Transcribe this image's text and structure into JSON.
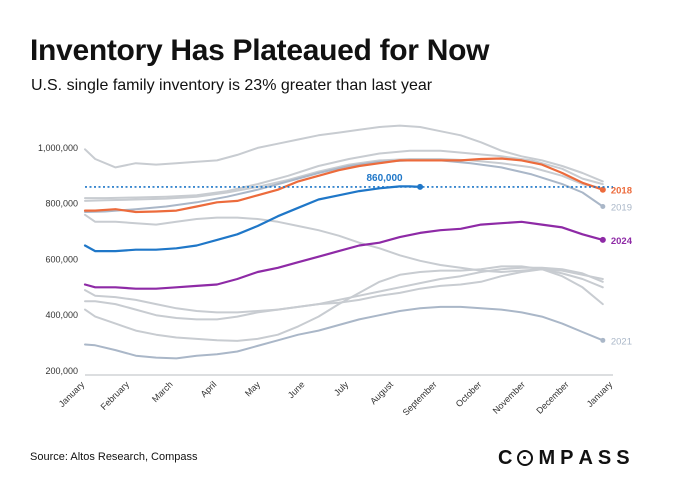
{
  "title": "Inventory Has Plateaued for Now",
  "subtitle": "U.S. single family inventory is 23% greater than last year",
  "source": "Source: Altos Research, Compass",
  "logo": {
    "text": "COMPASS",
    "letters": [
      "C",
      "O",
      "M",
      "P",
      "A",
      "S",
      "S"
    ]
  },
  "chart_data": {
    "type": "line",
    "ylim": [
      200000,
      1100000
    ],
    "y_ticks": [
      200000,
      400000,
      600000,
      800000,
      1000000
    ],
    "y_tick_labels": [
      "200,000",
      "400,000",
      "600,000",
      "800,000",
      "1,000,000"
    ],
    "x_ticks": [
      1,
      5.4,
      9.7,
      14,
      18.3,
      22.7,
      27,
      31.4,
      35.7,
      40.1,
      44.4,
      48.7,
      53
    ],
    "x_tick_labels": [
      "January",
      "February",
      "March",
      "April",
      "May",
      "June",
      "July",
      "August",
      "September",
      "October",
      "November",
      "December",
      "January"
    ],
    "grid": false,
    "reference_line": {
      "value": 860000,
      "label": "860,000",
      "color": "#1f77c8"
    },
    "series": [
      {
        "name": "",
        "color": "#c8ccd1",
        "x": [
          1,
          2,
          4,
          6,
          8,
          10,
          12,
          14,
          16,
          18,
          20,
          22,
          24,
          26,
          28,
          30,
          32,
          34,
          36,
          38,
          40,
          42,
          44,
          46,
          48,
          50,
          52
        ],
        "values": [
          995000,
          960000,
          930000,
          945000,
          940000,
          945000,
          950000,
          955000,
          975000,
          1000000,
          1015000,
          1030000,
          1045000,
          1055000,
          1065000,
          1075000,
          1080000,
          1075000,
          1060000,
          1045000,
          1020000,
          990000,
          970000,
          955000,
          935000,
          910000,
          880000
        ]
      },
      {
        "name": "",
        "color": "#c8ccd1",
        "x": [
          1,
          3,
          6,
          9,
          12,
          15,
          18,
          21,
          24,
          27,
          30,
          33,
          36,
          39,
          42,
          45,
          48,
          50,
          52
        ],
        "values": [
          820000,
          820000,
          822000,
          825000,
          830000,
          845000,
          870000,
          900000,
          935000,
          960000,
          980000,
          990000,
          990000,
          980000,
          970000,
          955000,
          925000,
          890000,
          870000
        ]
      },
      {
        "name": "",
        "color": "#c8ccd1",
        "x": [
          1,
          3,
          6,
          9,
          12,
          15,
          18,
          21,
          24,
          27,
          30,
          33,
          36,
          39,
          42,
          45,
          48,
          50,
          52
        ],
        "values": [
          810000,
          812000,
          815000,
          818000,
          825000,
          840000,
          860000,
          885000,
          915000,
          940000,
          955000,
          960000,
          960000,
          955000,
          945000,
          930000,
          900000,
          870000,
          855000
        ]
      },
      {
        "name": "2019",
        "color": "#aab7c8",
        "x": [
          1,
          3,
          6,
          9,
          12,
          15,
          18,
          21,
          24,
          27,
          30,
          33,
          36,
          39,
          42,
          45,
          48,
          50,
          52
        ],
        "values": [
          770000,
          772000,
          780000,
          790000,
          805000,
          825000,
          850000,
          880000,
          910000,
          935000,
          950000,
          955000,
          955000,
          945000,
          930000,
          905000,
          870000,
          840000,
          790000
        ]
      },
      {
        "name": "",
        "color": "#c8ccd1",
        "x": [
          1,
          2,
          4,
          6,
          8,
          10,
          12,
          14,
          16,
          18,
          20,
          22,
          24,
          26,
          28,
          30,
          32,
          34,
          36,
          38,
          40,
          42,
          44,
          46,
          48,
          50,
          52
        ],
        "values": [
          760000,
          735000,
          735000,
          730000,
          725000,
          735000,
          745000,
          750000,
          750000,
          745000,
          735000,
          720000,
          705000,
          685000,
          660000,
          640000,
          615000,
          595000,
          580000,
          570000,
          560000,
          555000,
          560000,
          565000,
          560000,
          545000,
          530000
        ]
      },
      {
        "name": "",
        "color": "#c8ccd1",
        "x": [
          1,
          2,
          4,
          6,
          8,
          10,
          12,
          14,
          16,
          18,
          20,
          22,
          24,
          26,
          28,
          30,
          32,
          34,
          36,
          38,
          40,
          42,
          44,
          46,
          48,
          50,
          52
        ],
        "values": [
          490000,
          470000,
          465000,
          455000,
          440000,
          425000,
          415000,
          410000,
          410000,
          415000,
          420000,
          430000,
          440000,
          455000,
          470000,
          485000,
          500000,
          515000,
          530000,
          540000,
          555000,
          565000,
          570000,
          570000,
          565000,
          550000,
          520000
        ]
      },
      {
        "name": "",
        "color": "#c8ccd1",
        "x": [
          1,
          2,
          4,
          6,
          8,
          10,
          12,
          14,
          16,
          18,
          20,
          22,
          24,
          26,
          28,
          30,
          32,
          34,
          36,
          38,
          40,
          42,
          44,
          46,
          48,
          50,
          52
        ],
        "values": [
          420000,
          395000,
          370000,
          345000,
          330000,
          320000,
          315000,
          310000,
          308000,
          315000,
          330000,
          360000,
          395000,
          440000,
          480000,
          520000,
          545000,
          555000,
          560000,
          560000,
          565000,
          575000,
          575000,
          565000,
          550000,
          530000,
          500000
        ]
      },
      {
        "name": "",
        "color": "#c8ccd1",
        "x": [
          1,
          2,
          4,
          6,
          8,
          10,
          12,
          14,
          16,
          18,
          20,
          22,
          24,
          26,
          28,
          30,
          32,
          34,
          36,
          38,
          40,
          42,
          44,
          46,
          48,
          50,
          52
        ],
        "values": [
          450000,
          450000,
          440000,
          420000,
          400000,
          390000,
          385000,
          385000,
          395000,
          410000,
          420000,
          430000,
          440000,
          445000,
          455000,
          470000,
          480000,
          495000,
          505000,
          510000,
          520000,
          540000,
          555000,
          565000,
          540000,
          500000,
          440000
        ]
      },
      {
        "name": "2021",
        "color": "#aab7c8",
        "x": [
          1,
          2,
          4,
          6,
          8,
          10,
          12,
          14,
          16,
          18,
          20,
          22,
          24,
          26,
          28,
          30,
          32,
          34,
          36,
          38,
          40,
          42,
          44,
          46,
          48,
          50,
          52
        ],
        "values": [
          295000,
          292000,
          275000,
          255000,
          248000,
          245000,
          255000,
          260000,
          270000,
          290000,
          310000,
          330000,
          345000,
          365000,
          385000,
          400000,
          415000,
          425000,
          430000,
          430000,
          425000,
          420000,
          410000,
          395000,
          370000,
          340000,
          310000
        ]
      },
      {
        "name": "2018",
        "color": "#ec6b3c",
        "x": [
          1,
          2,
          4,
          6,
          8,
          10,
          12,
          14,
          16,
          18,
          20,
          22,
          24,
          26,
          28,
          30,
          32,
          34,
          36,
          38,
          40,
          42,
          44,
          46,
          48,
          50,
          52
        ],
        "values": [
          775000,
          775000,
          780000,
          770000,
          772000,
          775000,
          790000,
          805000,
          810000,
          830000,
          850000,
          880000,
          900000,
          920000,
          935000,
          945000,
          955000,
          955000,
          955000,
          955000,
          960000,
          962000,
          955000,
          940000,
          910000,
          875000,
          850000
        ]
      },
      {
        "name": "2024",
        "color": "#8e2aa6",
        "x": [
          1,
          2,
          4,
          6,
          8,
          10,
          12,
          14,
          16,
          18,
          20,
          22,
          24,
          26,
          28,
          30,
          32,
          34,
          36,
          38,
          40,
          42,
          44,
          46,
          48,
          50,
          52
        ],
        "values": [
          510000,
          500000,
          500000,
          495000,
          495000,
          500000,
          505000,
          510000,
          530000,
          555000,
          570000,
          590000,
          610000,
          630000,
          650000,
          660000,
          680000,
          695000,
          705000,
          710000,
          725000,
          730000,
          735000,
          725000,
          715000,
          690000,
          670000
        ]
      },
      {
        "name": "",
        "color": "#1f77c8",
        "x": [
          1,
          2,
          4,
          6,
          8,
          10,
          12,
          14,
          16,
          18,
          20,
          22,
          24,
          26,
          28,
          30,
          32,
          33,
          34
        ],
        "values": [
          650000,
          630000,
          630000,
          635000,
          635000,
          640000,
          650000,
          670000,
          690000,
          720000,
          755000,
          785000,
          815000,
          830000,
          845000,
          855000,
          862000,
          862000,
          860000
        ]
      }
    ]
  }
}
